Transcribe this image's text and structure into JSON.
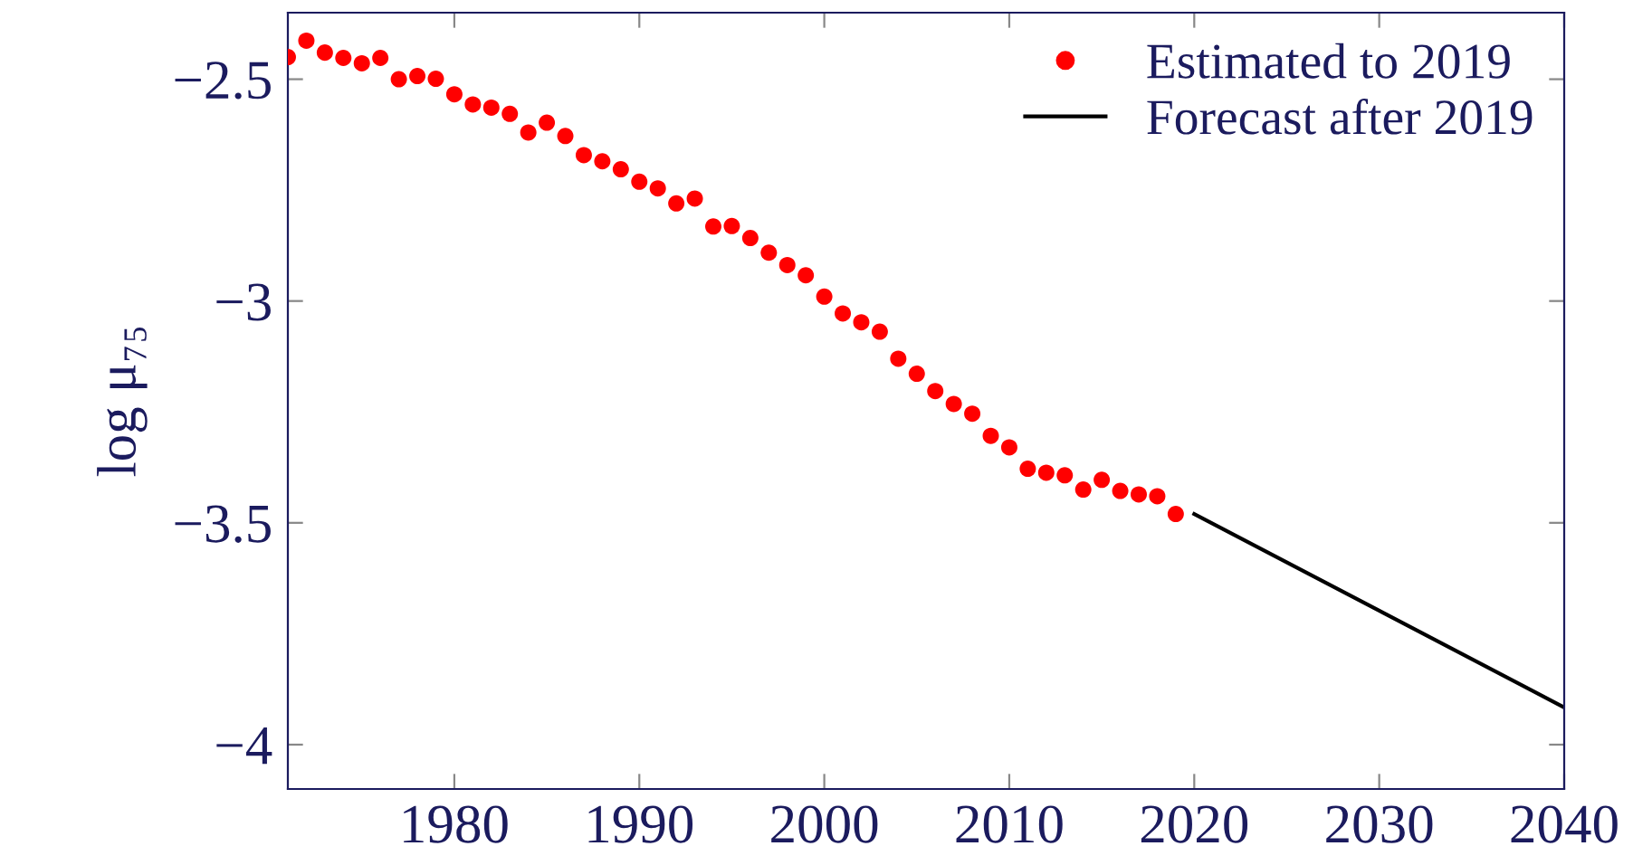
{
  "chart_data": {
    "type": "scatter",
    "ylabel": "log μ₇₅",
    "xlim": [
      1971,
      2040
    ],
    "ylim": [
      -4.1,
      -2.35
    ],
    "xticks": [
      1980,
      1990,
      2000,
      2010,
      2020,
      2030,
      2040
    ],
    "yticks": [
      {
        "value": -2.5,
        "label": "−2.5"
      },
      {
        "value": -3,
        "label": "−3"
      },
      {
        "value": -3.5,
        "label": "−3.5"
      },
      {
        "value": -4,
        "label": "−4"
      }
    ],
    "grid": false,
    "legend": "top right",
    "series": [
      {
        "name": "Estimated to 2019",
        "color": "#ff0000",
        "marker": "circle",
        "x": [
          1971,
          1972,
          1973,
          1974,
          1975,
          1976,
          1977,
          1978,
          1979,
          1980,
          1981,
          1982,
          1983,
          1984,
          1985,
          1986,
          1987,
          1988,
          1989,
          1990,
          1991,
          1992,
          1993,
          1994,
          1995,
          1996,
          1997,
          1998,
          1999,
          2000,
          2001,
          2002,
          2003,
          2004,
          2005,
          2006,
          2007,
          2008,
          2009,
          2010,
          2011,
          2012,
          2013,
          2014,
          2015,
          2016,
          2017,
          2018,
          2019
        ],
        "values": [
          -2.45,
          -2.413,
          -2.44,
          -2.452,
          -2.464,
          -2.452,
          -2.5,
          -2.493,
          -2.499,
          -2.534,
          -2.557,
          -2.564,
          -2.578,
          -2.62,
          -2.598,
          -2.628,
          -2.671,
          -2.685,
          -2.703,
          -2.731,
          -2.746,
          -2.78,
          -2.769,
          -2.832,
          -2.831,
          -2.858,
          -2.891,
          -2.919,
          -2.942,
          -2.99,
          -3.028,
          -3.048,
          -3.069,
          -3.13,
          -3.164,
          -3.203,
          -3.232,
          -3.254,
          -3.304,
          -3.33,
          -3.378,
          -3.387,
          -3.393,
          -3.425,
          -3.403,
          -3.428,
          -3.436,
          -3.44,
          -3.48
        ]
      },
      {
        "name": "Forecast after 2019",
        "type": "line",
        "color": "#000000",
        "line_style": "solid",
        "marker": "none",
        "x": [
          2020,
          2040
        ],
        "values": [
          -3.48,
          -3.916
        ]
      }
    ]
  }
}
